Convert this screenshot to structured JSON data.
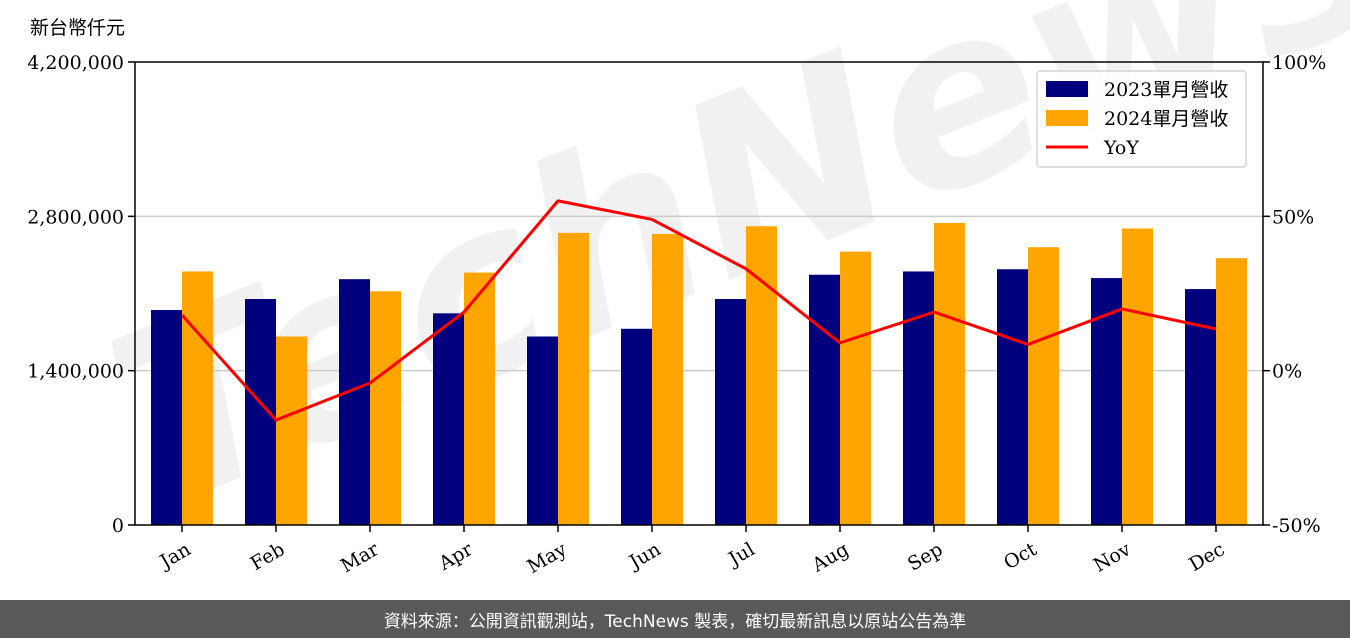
{
  "chart_data": {
    "type": "bar",
    "unit_label": "新台幣仟元",
    "categories": [
      "Jan",
      "Feb",
      "Mar",
      "Apr",
      "May",
      "Jun",
      "Jul",
      "Aug",
      "Sep",
      "Oct",
      "Nov",
      "Dec"
    ],
    "series": [
      {
        "name": "2023單月營收",
        "type": "bar",
        "axis": "left",
        "color": "#00007f",
        "values": [
          1950000,
          2050000,
          2230000,
          1920000,
          1710000,
          1780000,
          2050000,
          2270000,
          2300000,
          2320000,
          2240000,
          2140000
        ]
      },
      {
        "name": "2024單月營收",
        "type": "bar",
        "axis": "left",
        "color": "#ffa500",
        "values": [
          2300000,
          1710000,
          2120000,
          2290000,
          2650000,
          2640000,
          2710000,
          2480000,
          2740000,
          2520000,
          2690000,
          2420000
        ]
      },
      {
        "name": "YoY",
        "type": "line",
        "axis": "right",
        "color": "#ff0000",
        "unit": "%",
        "values": [
          18,
          -16,
          -4,
          19,
          55,
          49,
          33,
          9,
          19,
          8.5,
          20,
          13.5
        ]
      }
    ],
    "y_left": {
      "min": 0,
      "max": 4200000,
      "ticks": [
        0,
        1400000,
        2800000,
        4200000
      ],
      "tick_labels": [
        "0",
        "1,400,000",
        "2,800,000",
        "4,200,000"
      ]
    },
    "y_right": {
      "min": -50,
      "max": 100,
      "ticks": [
        -50,
        0,
        50,
        100
      ],
      "tick_labels": [
        "-50%",
        "0%",
        "50%",
        "100%"
      ]
    },
    "grid": "horizontal",
    "legend_position": "top-right",
    "watermark": "TechNews"
  },
  "footer": {
    "source_text": "資料來源：公開資訊觀測站，TechNews 製表，確切最新訊息以原站公告為準"
  }
}
